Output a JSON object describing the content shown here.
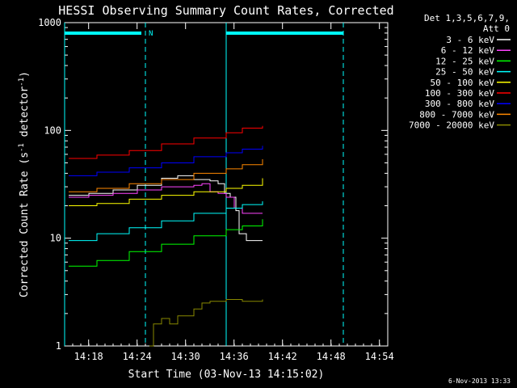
{
  "chart_data": {
    "type": "line",
    "title": "HESSI Observing Summary Count Rates, Corrected",
    "xlabel": "Start Time (03-Nov-13 14:15:02)",
    "ylabel_parts": [
      "Corrected Count Rate (s",
      "-1",
      " detector",
      "-1",
      ")"
    ],
    "yscale": "log",
    "ylim": [
      1,
      1000
    ],
    "xlim_minutes": [
      0,
      40.0
    ],
    "x_ticks": [
      "14:18",
      "14:24",
      "14:30",
      "14:36",
      "14:42",
      "14:48",
      "14:54"
    ],
    "y_ticks": [
      "1",
      "10",
      "100",
      "1000"
    ],
    "legend_header": [
      "Det 1,3,5,6,7,9,",
      "Att 0"
    ],
    "legend_position": "top-right, outside plot",
    "footer": "6-Nov-2013 13:33",
    "series": [
      {
        "name": "3 - 6 keV",
        "color": "#ffffff",
        "points": [
          [
            0.5,
            25
          ],
          [
            3,
            26
          ],
          [
            6,
            28
          ],
          [
            9,
            31
          ],
          [
            12,
            36
          ],
          [
            14,
            38
          ],
          [
            16,
            35
          ],
          [
            18,
            34
          ],
          [
            19,
            32
          ],
          [
            19.8,
            26
          ],
          [
            20.5,
            24
          ],
          [
            21.2,
            18
          ],
          [
            21.6,
            11
          ],
          [
            22.5,
            9.5
          ],
          [
            24.5,
            9.5
          ]
        ]
      },
      {
        "name": "6 - 12 keV",
        "color": "#ff44ff",
        "points": [
          [
            0.5,
            24
          ],
          [
            3,
            25
          ],
          [
            6,
            26
          ],
          [
            9,
            28
          ],
          [
            12,
            30
          ],
          [
            14,
            30
          ],
          [
            16,
            31
          ],
          [
            17,
            32
          ],
          [
            18,
            27
          ],
          [
            19,
            26
          ],
          [
            20,
            24
          ],
          [
            21,
            19
          ],
          [
            22,
            17
          ],
          [
            24.5,
            17
          ]
        ]
      },
      {
        "name": "12 - 25 keV",
        "color": "#00ff00",
        "points": [
          [
            0.5,
            5.5
          ],
          [
            4,
            6.2
          ],
          [
            8,
            7.5
          ],
          [
            12,
            8.8
          ],
          [
            16,
            10.5
          ],
          [
            20,
            12
          ],
          [
            22,
            13
          ],
          [
            24.5,
            15
          ]
        ]
      },
      {
        "name": "25 - 50 keV",
        "color": "#00ffff",
        "points": [
          [
            0.5,
            9.5
          ],
          [
            4,
            11
          ],
          [
            8,
            12.5
          ],
          [
            12,
            14.5
          ],
          [
            16,
            17
          ],
          [
            20,
            19
          ],
          [
            22,
            20.5
          ],
          [
            24.5,
            22
          ]
        ]
      },
      {
        "name": "50 - 100 keV",
        "color": "#ffff00",
        "points": [
          [
            0.5,
            20
          ],
          [
            4,
            21
          ],
          [
            8,
            23
          ],
          [
            12,
            25
          ],
          [
            16,
            27
          ],
          [
            20,
            29
          ],
          [
            22,
            31
          ],
          [
            24.5,
            36
          ]
        ]
      },
      {
        "name": "100 - 300 keV",
        "color": "#ff0000",
        "points": [
          [
            0.5,
            55
          ],
          [
            4,
            59
          ],
          [
            8,
            65
          ],
          [
            12,
            75
          ],
          [
            16,
            85
          ],
          [
            20,
            95
          ],
          [
            22,
            105
          ],
          [
            24.5,
            110
          ]
        ]
      },
      {
        "name": "300 - 800 keV",
        "color": "#0000ff",
        "points": [
          [
            0.5,
            38
          ],
          [
            4,
            41
          ],
          [
            8,
            45
          ],
          [
            12,
            50
          ],
          [
            16,
            57
          ],
          [
            20,
            62
          ],
          [
            22,
            67
          ],
          [
            24.5,
            72
          ]
        ]
      },
      {
        "name": "800 - 7000 keV",
        "color": "#ff8800",
        "points": [
          [
            0.5,
            27
          ],
          [
            4,
            29
          ],
          [
            8,
            32
          ],
          [
            12,
            35
          ],
          [
            16,
            40
          ],
          [
            20,
            44
          ],
          [
            22,
            48
          ],
          [
            24.5,
            54
          ]
        ]
      },
      {
        "name": "7000 - 20000 keV",
        "color": "#888800",
        "points": [
          [
            10.5,
            1
          ],
          [
            11,
            1.6
          ],
          [
            12,
            1.8
          ],
          [
            13,
            1.6
          ],
          [
            14,
            1.9
          ],
          [
            15,
            1.9
          ],
          [
            16,
            2.2
          ],
          [
            17,
            2.5
          ],
          [
            18,
            2.6
          ],
          [
            20,
            2.7
          ],
          [
            22,
            2.6
          ],
          [
            24.5,
            2.7
          ]
        ]
      }
    ],
    "attenuator_bars": [
      [
        0,
        9.5
      ],
      [
        20,
        34.5
      ]
    ],
    "bar_label": "N",
    "dashed_markers": [
      10,
      34.5
    ],
    "solid_markers": [
      0,
      20
    ]
  }
}
